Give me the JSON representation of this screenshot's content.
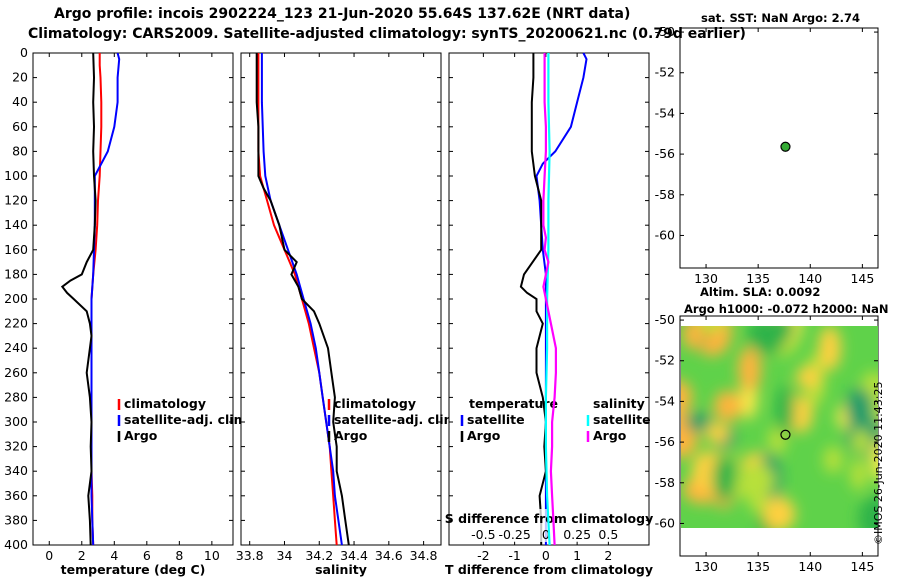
{
  "header": {
    "line1": "Argo profile: incois 2902224_123 21-Jun-2020 55.64S 137.62E (NRT data)",
    "line2": "Climatology: CARS2009. Satellite-adjusted climatology: synTS_20200621.nc (0.79d earlier)"
  },
  "sst_title": "sat. SST: NaN Argo: 2.74",
  "sla_title1": "Altim. SLA: 0.0092",
  "sla_title2": "Argo h1000: -0.072 h2000: NaN",
  "credit": "©IMOS 26-Jun-2020 11:43:25",
  "colors": {
    "climatology": "#ff0000",
    "satellite": "#0000ff",
    "argo": "#000000",
    "satellite_s": "#00ffff",
    "argo_s": "#ff00ff",
    "marker": "#33aa33"
  },
  "chart_data": [
    {
      "id": "temperature",
      "type": "line",
      "xlabel": "temperature (deg C)",
      "ylabel": "",
      "xlim": [
        -1,
        11.3
      ],
      "ylim": [
        400,
        0
      ],
      "xticks": [
        0,
        2,
        4,
        6,
        8,
        10
      ],
      "yticks": [
        0,
        20,
        40,
        60,
        80,
        100,
        120,
        140,
        160,
        180,
        200,
        220,
        240,
        260,
        280,
        300,
        320,
        340,
        360,
        380,
        400
      ],
      "legend": [
        "climatology",
        "satellite-adj. clim.",
        "Argo"
      ],
      "series": [
        {
          "name": "climatology",
          "color": "#ff0000",
          "depth": [
            0,
            10,
            20,
            40,
            60,
            80,
            100,
            120,
            140,
            160,
            180,
            200,
            220,
            240,
            260,
            280,
            300,
            320,
            340,
            360,
            380,
            400
          ],
          "values": [
            3.1,
            3.1,
            3.15,
            3.2,
            3.2,
            3.15,
            3.1,
            3.0,
            2.95,
            2.85,
            2.7,
            2.6,
            2.6,
            2.6,
            2.6,
            2.6,
            2.6,
            2.6,
            2.6,
            2.65,
            2.65,
            2.7
          ]
        },
        {
          "name": "satellite-adj. clim.",
          "color": "#0000ff",
          "depth": [
            0,
            5,
            20,
            40,
            60,
            80,
            100,
            120,
            140,
            160,
            180,
            200,
            220,
            240,
            260,
            280,
            300,
            320,
            340,
            360,
            380,
            400
          ],
          "values": [
            4.2,
            4.3,
            4.2,
            4.2,
            4.0,
            3.6,
            2.8,
            2.8,
            2.8,
            2.75,
            2.7,
            2.6,
            2.6,
            2.6,
            2.6,
            2.6,
            2.6,
            2.6,
            2.6,
            2.6,
            2.65,
            2.7
          ]
        },
        {
          "name": "Argo",
          "color": "#000000",
          "depth": [
            0,
            20,
            40,
            60,
            80,
            100,
            120,
            140,
            160,
            170,
            180,
            185,
            190,
            195,
            200,
            210,
            220,
            230,
            240,
            260,
            280,
            300,
            320,
            340,
            360,
            380,
            400
          ],
          "values": [
            2.7,
            2.75,
            2.7,
            2.75,
            2.7,
            2.75,
            2.85,
            2.8,
            2.7,
            2.3,
            2.0,
            1.3,
            0.8,
            1.1,
            1.5,
            2.3,
            2.5,
            2.6,
            2.5,
            2.3,
            2.5,
            2.6,
            2.55,
            2.6,
            2.4,
            2.5,
            2.55
          ]
        }
      ]
    },
    {
      "id": "salinity",
      "type": "line",
      "xlabel": "salinity",
      "ylabel": "",
      "xlim": [
        33.75,
        34.9
      ],
      "ylim": [
        400,
        0
      ],
      "xticks": [
        33.8,
        34,
        34.2,
        34.4,
        34.6,
        34.8
      ],
      "yticks": [
        0,
        20,
        40,
        60,
        80,
        100,
        120,
        140,
        160,
        180,
        200,
        220,
        240,
        260,
        280,
        300,
        320,
        340,
        360,
        380,
        400
      ],
      "legend": [
        "climatology",
        "satellite-adj. clim.",
        "Argo"
      ],
      "series": [
        {
          "name": "climatology",
          "color": "#ff0000",
          "depth": [
            0,
            40,
            80,
            100,
            120,
            140,
            160,
            180,
            200,
            220,
            240,
            260,
            280,
            300,
            320,
            340,
            360,
            380,
            400
          ],
          "values": [
            33.85,
            33.85,
            33.85,
            33.86,
            33.9,
            33.94,
            34.0,
            34.06,
            34.1,
            34.14,
            34.17,
            34.2,
            34.22,
            34.24,
            34.26,
            34.27,
            34.28,
            34.29,
            34.3
          ]
        },
        {
          "name": "satellite-adj. clim.",
          "color": "#0000ff",
          "depth": [
            0,
            40,
            80,
            100,
            120,
            140,
            160,
            180,
            200,
            220,
            240,
            260,
            280,
            300,
            320,
            340,
            360,
            380,
            400
          ],
          "values": [
            33.87,
            33.87,
            33.88,
            33.89,
            33.92,
            33.97,
            34.02,
            34.07,
            34.11,
            34.15,
            34.18,
            34.2,
            34.22,
            34.24,
            34.26,
            34.28,
            34.29,
            34.31,
            34.33
          ]
        },
        {
          "name": "Argo",
          "color": "#000000",
          "depth": [
            0,
            20,
            40,
            60,
            80,
            100,
            110,
            120,
            140,
            160,
            170,
            180,
            190,
            200,
            210,
            220,
            240,
            260,
            280,
            300,
            320,
            340,
            360,
            380,
            400
          ],
          "values": [
            33.84,
            33.84,
            33.84,
            33.85,
            33.85,
            33.85,
            33.88,
            33.92,
            33.97,
            34.0,
            34.07,
            34.04,
            34.08,
            34.1,
            34.17,
            34.2,
            34.25,
            34.27,
            34.29,
            34.28,
            34.3,
            34.3,
            34.33,
            34.35,
            34.37
          ]
        }
      ]
    },
    {
      "id": "difference",
      "type": "line",
      "xlabel": "T difference from climatology",
      "x2label": "S difference from climatology",
      "xlim": [
        -3.1,
        3.3
      ],
      "ylim": [
        400,
        0
      ],
      "xticks": [
        -2,
        -1,
        0,
        1,
        2
      ],
      "x2ticks": [
        -0.5,
        -0.25,
        0,
        0.25,
        0.5
      ],
      "x2tick_labels": [
        "-0.5",
        "-0.25",
        "0",
        "0.25",
        "0.5"
      ],
      "yticks": [
        0,
        20,
        40,
        60,
        80,
        100,
        120,
        140,
        160,
        180,
        200,
        220,
        240,
        260,
        280,
        300,
        320,
        340,
        360,
        380,
        400
      ],
      "legend_left_title": "temperature",
      "legend_right_title": "salinity",
      "legend_left": [
        "satellite",
        "Argo"
      ],
      "legend_right": [
        "satellite",
        "Argo"
      ],
      "series": [
        {
          "name": "temperature satellite",
          "color": "#0000ff",
          "depth": [
            0,
            5,
            20,
            40,
            60,
            80,
            90,
            100,
            120,
            140,
            160,
            180,
            200,
            220,
            240,
            260,
            280,
            300,
            320,
            340,
            360,
            380,
            400
          ],
          "values": [
            1.2,
            1.3,
            1.2,
            1.0,
            0.8,
            0.3,
            -0.1,
            -0.3,
            -0.2,
            -0.15,
            -0.1,
            0.0,
            0.0,
            0.0,
            0.0,
            0.0,
            0.0,
            0.0,
            0.0,
            0.0,
            0.0,
            0.0,
            0.0
          ]
        },
        {
          "name": "temperature Argo",
          "color": "#000000",
          "depth": [
            0,
            20,
            40,
            60,
            80,
            100,
            120,
            140,
            160,
            180,
            190,
            195,
            200,
            210,
            220,
            240,
            260,
            280,
            300,
            320,
            340,
            360,
            380,
            400
          ],
          "values": [
            -0.4,
            -0.4,
            -0.45,
            -0.45,
            -0.45,
            -0.35,
            -0.15,
            -0.15,
            -0.15,
            -0.7,
            -0.8,
            -0.6,
            -0.3,
            -0.3,
            -0.1,
            -0.3,
            -0.3,
            -0.1,
            0.0,
            -0.05,
            0.0,
            -0.2,
            -0.15,
            -0.15
          ]
        },
        {
          "name": "salinity satellite",
          "color": "#00ffff",
          "depth": [
            0,
            40,
            80,
            120,
            160,
            200,
            240,
            280,
            320,
            360,
            400
          ],
          "values": [
            0.02,
            0.02,
            0.03,
            0.02,
            0.02,
            0.01,
            0.01,
            0.0,
            0.0,
            0.01,
            0.03
          ]
        },
        {
          "name": "salinity Argo",
          "color": "#ff00ff",
          "depth": [
            0,
            20,
            40,
            60,
            80,
            100,
            120,
            140,
            150,
            160,
            170,
            180,
            190,
            200,
            220,
            240,
            260,
            280,
            300,
            320,
            340,
            360,
            380,
            400
          ],
          "values": [
            -0.01,
            -0.01,
            -0.01,
            0.0,
            0.0,
            -0.01,
            -0.02,
            -0.02,
            0.0,
            -0.01,
            0.02,
            0.0,
            -0.02,
            0.0,
            0.04,
            0.08,
            0.08,
            0.07,
            0.05,
            0.05,
            0.04,
            0.05,
            0.06,
            0.07
          ]
        }
      ]
    },
    {
      "id": "sst_map",
      "type": "scatter",
      "title": "sat. SST: NaN Argo: 2.74",
      "xlim": [
        127.5,
        146.5
      ],
      "ylim": [
        -61.6,
        -49.8
      ],
      "xticks": [
        130,
        135,
        140,
        145
      ],
      "yticks": [
        -50,
        -52,
        -54,
        -56,
        -58,
        -60
      ],
      "points": [
        {
          "lon": 137.62,
          "lat": -55.64
        }
      ]
    },
    {
      "id": "sla_map",
      "type": "heatmap",
      "title": "Altim. SLA: 0.0092",
      "subtitle": "Argo h1000: -0.072 h2000: NaN",
      "xlim": [
        127.5,
        146.5
      ],
      "ylim": [
        -61.6,
        -49.8
      ],
      "xticks": [
        130,
        135,
        140,
        145
      ],
      "yticks": [
        -50,
        -52,
        -54,
        -56,
        -58,
        -60
      ],
      "points": [
        {
          "lon": 137.62,
          "lat": -55.64
        }
      ]
    }
  ]
}
